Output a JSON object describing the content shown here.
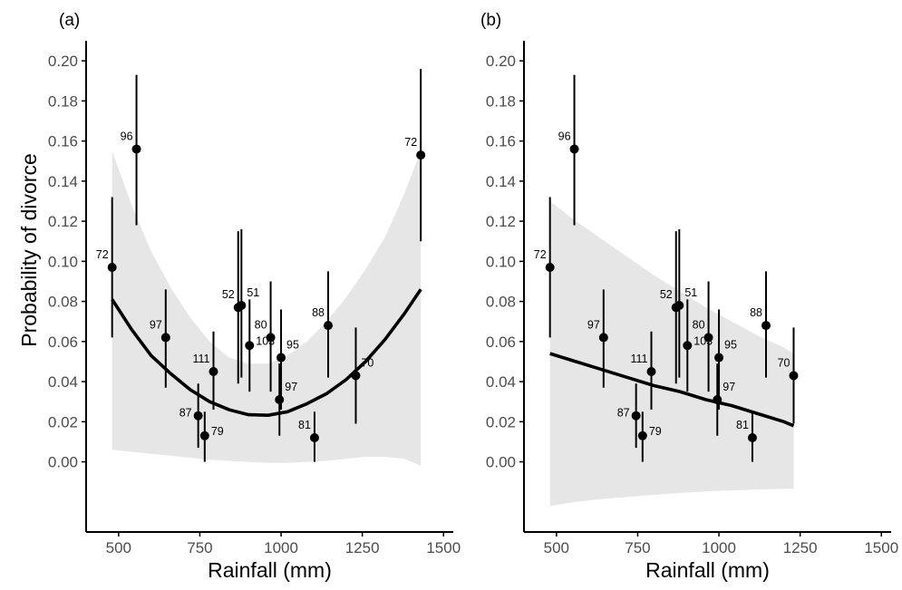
{
  "chart_data": [
    {
      "type": "scatter",
      "panel_label": "(a)",
      "xlabel": "Rainfall (mm)",
      "ylabel": "Probability of divorce",
      "xlim": [
        400,
        1530
      ],
      "ylim": [
        -0.035,
        0.21
      ],
      "x_ticks": [
        500,
        750,
        1000,
        1250,
        1500
      ],
      "x_tick_labels": [
        "500",
        "750",
        "1000",
        "1250",
        "1500"
      ],
      "y_ticks": [
        0.0,
        0.02,
        0.04,
        0.06,
        0.08,
        0.1,
        0.12,
        0.14,
        0.16,
        0.18,
        0.2
      ],
      "y_tick_labels": [
        "0.00",
        "0.02",
        "0.04",
        "0.06",
        "0.08",
        "0.10",
        "0.12",
        "0.14",
        "0.16",
        "0.18",
        "0.20"
      ],
      "points": [
        {
          "x": 480,
          "y": 0.097,
          "lo": 0.062,
          "hi": 0.132,
          "n": "72",
          "lpos": "l"
        },
        {
          "x": 555,
          "y": 0.156,
          "lo": 0.118,
          "hi": 0.193,
          "n": "96",
          "lpos": "l"
        },
        {
          "x": 645,
          "y": 0.062,
          "lo": 0.037,
          "hi": 0.086,
          "n": "97",
          "lpos": "l"
        },
        {
          "x": 745,
          "y": 0.023,
          "lo": 0.007,
          "hi": 0.039,
          "n": "87",
          "lpos": "bl"
        },
        {
          "x": 765,
          "y": 0.013,
          "lo": 0.0,
          "hi": 0.025,
          "n": "79",
          "lpos": "br"
        },
        {
          "x": 792,
          "y": 0.045,
          "lo": 0.026,
          "hi": 0.065,
          "n": "111",
          "lpos": "l"
        },
        {
          "x": 868,
          "y": 0.077,
          "lo": 0.039,
          "hi": 0.115,
          "n": "52",
          "lpos": "l"
        },
        {
          "x": 878,
          "y": 0.078,
          "lo": 0.042,
          "hi": 0.116,
          "n": "51",
          "lpos": "tr"
        },
        {
          "x": 903,
          "y": 0.058,
          "lo": 0.035,
          "hi": 0.081,
          "n": "103",
          "lpos": "br"
        },
        {
          "x": 968,
          "y": 0.062,
          "lo": 0.035,
          "hi": 0.09,
          "n": "80",
          "lpos": "tl"
        },
        {
          "x": 995,
          "y": 0.031,
          "lo": 0.013,
          "hi": 0.049,
          "n": "97",
          "lpos": "tr"
        },
        {
          "x": 1000,
          "y": 0.052,
          "lo": 0.026,
          "hi": 0.076,
          "n": "95",
          "lpos": "tr"
        },
        {
          "x": 1103,
          "y": 0.012,
          "lo": 0.0,
          "hi": 0.025,
          "n": "81",
          "lpos": "tl"
        },
        {
          "x": 1145,
          "y": 0.068,
          "lo": 0.042,
          "hi": 0.095,
          "n": "88",
          "lpos": "tl"
        },
        {
          "x": 1230,
          "y": 0.043,
          "lo": 0.019,
          "hi": 0.067,
          "n": "70",
          "lpos": "tr"
        },
        {
          "x": 1430,
          "y": 0.153,
          "lo": 0.11,
          "hi": 0.196,
          "n": "72",
          "lpos": "tl"
        }
      ],
      "fit": {
        "x": [
          480,
          540,
          600,
          660,
          720,
          780,
          840,
          900,
          960,
          1020,
          1080,
          1140,
          1200,
          1260,
          1320,
          1380,
          1430
        ],
        "y": [
          0.081,
          0.066,
          0.053,
          0.044,
          0.036,
          0.03,
          0.026,
          0.0235,
          0.0232,
          0.025,
          0.029,
          0.034,
          0.041,
          0.05,
          0.061,
          0.074,
          0.086
        ],
        "lower": [
          0.006,
          0.005,
          0.004,
          0.003,
          0.002,
          0.001,
          0.0005,
          0.0,
          -0.0005,
          -0.0005,
          0.0,
          0.0005,
          0.0015,
          0.0025,
          0.0025,
          0.0015,
          -0.002
        ],
        "upper": [
          0.155,
          0.128,
          0.105,
          0.087,
          0.072,
          0.06,
          0.052,
          0.049,
          0.049,
          0.053,
          0.06,
          0.07,
          0.082,
          0.096,
          0.112,
          0.134,
          0.155
        ]
      }
    },
    {
      "type": "scatter",
      "panel_label": "(b)",
      "xlabel": "Rainfall (mm)",
      "ylabel": "",
      "xlim": [
        400,
        1530
      ],
      "ylim": [
        -0.035,
        0.21
      ],
      "x_ticks": [
        500,
        750,
        1000,
        1250,
        1500
      ],
      "x_tick_labels": [
        "500",
        "750",
        "1000",
        "1250",
        "1500"
      ],
      "y_ticks": [
        0.0,
        0.02,
        0.04,
        0.06,
        0.08,
        0.1,
        0.12,
        0.14,
        0.16,
        0.18,
        0.2
      ],
      "y_tick_labels": [
        "0.00",
        "0.02",
        "0.04",
        "0.06",
        "0.08",
        "0.10",
        "0.12",
        "0.14",
        "0.16",
        "0.18",
        "0.20"
      ],
      "points": [
        {
          "x": 480,
          "y": 0.097,
          "lo": 0.062,
          "hi": 0.132,
          "n": "72",
          "lpos": "l"
        },
        {
          "x": 555,
          "y": 0.156,
          "lo": 0.118,
          "hi": 0.193,
          "n": "96",
          "lpos": "l"
        },
        {
          "x": 645,
          "y": 0.062,
          "lo": 0.037,
          "hi": 0.086,
          "n": "97",
          "lpos": "l"
        },
        {
          "x": 745,
          "y": 0.023,
          "lo": 0.007,
          "hi": 0.039,
          "n": "87",
          "lpos": "bl"
        },
        {
          "x": 765,
          "y": 0.013,
          "lo": 0.0,
          "hi": 0.025,
          "n": "79",
          "lpos": "br"
        },
        {
          "x": 792,
          "y": 0.045,
          "lo": 0.026,
          "hi": 0.065,
          "n": "111",
          "lpos": "l"
        },
        {
          "x": 868,
          "y": 0.077,
          "lo": 0.039,
          "hi": 0.115,
          "n": "52",
          "lpos": "l"
        },
        {
          "x": 878,
          "y": 0.078,
          "lo": 0.042,
          "hi": 0.116,
          "n": "51",
          "lpos": "tr"
        },
        {
          "x": 903,
          "y": 0.058,
          "lo": 0.035,
          "hi": 0.081,
          "n": "103",
          "lpos": "br"
        },
        {
          "x": 968,
          "y": 0.062,
          "lo": 0.035,
          "hi": 0.09,
          "n": "80",
          "lpos": "tl"
        },
        {
          "x": 995,
          "y": 0.031,
          "lo": 0.013,
          "hi": 0.049,
          "n": "97",
          "lpos": "tr"
        },
        {
          "x": 1000,
          "y": 0.052,
          "lo": 0.026,
          "hi": 0.076,
          "n": "95",
          "lpos": "tr"
        },
        {
          "x": 1103,
          "y": 0.012,
          "lo": 0.0,
          "hi": 0.025,
          "n": "81",
          "lpos": "tl"
        },
        {
          "x": 1145,
          "y": 0.068,
          "lo": 0.042,
          "hi": 0.095,
          "n": "88",
          "lpos": "tl"
        },
        {
          "x": 1230,
          "y": 0.043,
          "lo": 0.019,
          "hi": 0.067,
          "n": "70",
          "lpos": "tl"
        }
      ],
      "fit": {
        "x": [
          480,
          560,
          640,
          720,
          800,
          880,
          960,
          1040,
          1120,
          1200,
          1230
        ],
        "y": [
          0.054,
          0.05,
          0.046,
          0.042,
          0.038,
          0.035,
          0.031,
          0.028,
          0.024,
          0.02,
          0.018
        ],
        "lower": [
          -0.022,
          -0.02,
          -0.0185,
          -0.0175,
          -0.0165,
          -0.0155,
          -0.0148,
          -0.0142,
          -0.0138,
          -0.0135,
          -0.0135
        ],
        "upper": [
          0.13,
          0.12,
          0.111,
          0.102,
          0.093,
          0.085,
          0.077,
          0.07,
          0.063,
          0.057,
          0.054
        ]
      }
    }
  ],
  "colors": {
    "ribbon": "#e6e6e6",
    "line": "#000000",
    "points": "#000000",
    "errorbars": "#000000",
    "tick_labels": "#4d4d4d",
    "axes": "#000000"
  }
}
